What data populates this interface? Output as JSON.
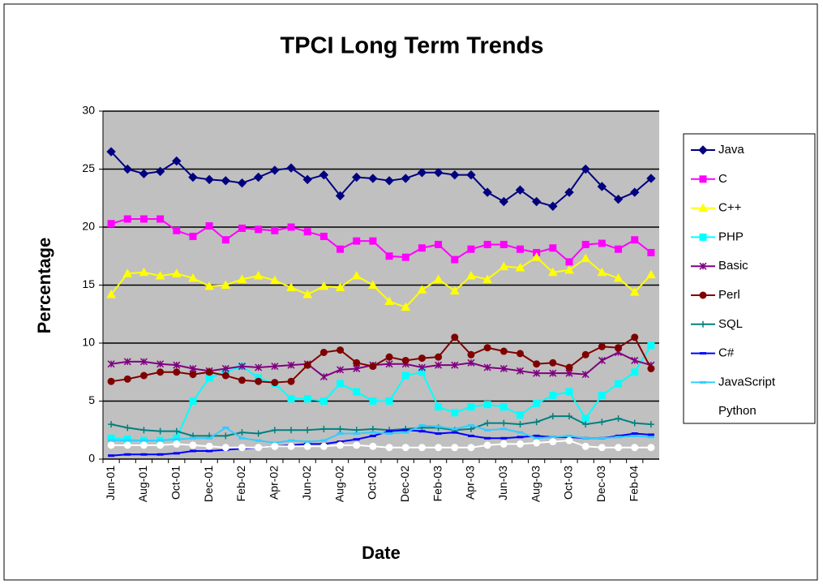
{
  "chart_data": {
    "type": "line",
    "title": "TPCI Long Term Trends",
    "x_label": "Date",
    "y_label": "Percentage",
    "categories": [
      "Jun-01",
      null,
      "Aug-01",
      null,
      "Oct-01",
      null,
      "Dec-01",
      null,
      "Feb-02",
      null,
      "Apr-02",
      null,
      "Jun-02",
      null,
      "Aug-02",
      null,
      "Oct-02",
      null,
      "Dec-02",
      null,
      "Feb-03",
      null,
      "Apr-03",
      null,
      "Jun-03",
      null,
      "Aug-03",
      null,
      "Oct-03",
      null,
      "Dec-03",
      null,
      "Feb-04",
      null
    ],
    "ylim": [
      0,
      30
    ],
    "yticks": [
      0,
      5,
      10,
      15,
      20,
      25,
      30
    ],
    "grid": true,
    "legend": "right",
    "series": [
      {
        "name": "Java",
        "color": "#000080",
        "marker": "diamond",
        "values": [
          26.5,
          25,
          24.6,
          24.8,
          25.7,
          24.3,
          24.1,
          24,
          23.8,
          24.3,
          24.9,
          25.1,
          24.1,
          24.5,
          22.7,
          24.3,
          24.2,
          24,
          24.2,
          24.7,
          24.7,
          24.5,
          24.5,
          23,
          22.2,
          23.2,
          22.2,
          21.8,
          23,
          25,
          23.5,
          22.4,
          23,
          24.2
        ]
      },
      {
        "name": "C",
        "color": "#ff00ff",
        "marker": "square",
        "values": [
          20.3,
          20.7,
          20.7,
          20.7,
          19.7,
          19.2,
          20.1,
          18.9,
          19.9,
          19.8,
          19.7,
          20,
          19.6,
          19.2,
          18.1,
          18.8,
          18.8,
          17.5,
          17.4,
          18.2,
          18.5,
          17.2,
          18.1,
          18.5,
          18.5,
          18.1,
          17.8,
          18.2,
          17,
          18.5,
          18.6,
          18.1,
          18.9,
          17.8
        ]
      },
      {
        "name": "C++",
        "color": "#ffff00",
        "marker": "triangle",
        "values": [
          14.2,
          16,
          16.1,
          15.8,
          16,
          15.6,
          14.9,
          15,
          15.5,
          15.8,
          15.4,
          14.8,
          14.2,
          14.9,
          14.8,
          15.8,
          15,
          13.6,
          13.1,
          14.6,
          15.5,
          14.5,
          15.8,
          15.5,
          16.6,
          16.5,
          17.4,
          16.1,
          16.3,
          17.3,
          16.1,
          15.6,
          14.4,
          15.9
        ]
      },
      {
        "name": "PHP",
        "color": "#00ffff",
        "marker": "square",
        "values": [
          1.8,
          1.7,
          1.6,
          1.6,
          1.8,
          5,
          7,
          7.5,
          8,
          7,
          6.5,
          5.2,
          5.2,
          5,
          6.5,
          5.8,
          5,
          5,
          7.2,
          7.5,
          4.5,
          4,
          4.5,
          4.7,
          4.5,
          3.8,
          4.8,
          5.5,
          5.8,
          3.5,
          5.5,
          6.5,
          7.5,
          9.8
        ]
      },
      {
        "name": "Basic",
        "color": "#800080",
        "marker": "star",
        "values": [
          8.2,
          8.4,
          8.4,
          8.2,
          8.1,
          7.8,
          7.6,
          7.8,
          8,
          7.9,
          8,
          8.1,
          8.2,
          7.1,
          7.7,
          7.8,
          8.1,
          8.2,
          8.2,
          7.9,
          8.1,
          8.1,
          8.3,
          7.9,
          7.8,
          7.6,
          7.4,
          7.4,
          7.4,
          7.3,
          8.5,
          9.2,
          8.5,
          8.1
        ]
      },
      {
        "name": "Perl",
        "color": "#800000",
        "marker": "circle",
        "values": [
          6.7,
          6.9,
          7.2,
          7.5,
          7.5,
          7.3,
          7.5,
          7.2,
          6.8,
          6.7,
          6.6,
          6.7,
          8.1,
          9.2,
          9.4,
          8.3,
          8,
          8.8,
          8.5,
          8.7,
          8.8,
          10.5,
          9,
          9.6,
          9.3,
          9.1,
          8.2,
          8.3,
          7.9,
          9,
          9.7,
          9.6,
          10.5,
          7.8
        ]
      },
      {
        "name": "SQL",
        "color": "#008080",
        "marker": "plus",
        "values": [
          3,
          2.7,
          2.5,
          2.4,
          2.4,
          2,
          2,
          2,
          2.3,
          2.2,
          2.5,
          2.5,
          2.5,
          2.6,
          2.6,
          2.5,
          2.6,
          2.5,
          2.6,
          2.7,
          2.7,
          2.5,
          2.6,
          3.1,
          3.1,
          3,
          3.2,
          3.7,
          3.7,
          3,
          3.2,
          3.5,
          3.1,
          3
        ]
      },
      {
        "name": "C#",
        "color": "#0000ff",
        "marker": "dash",
        "values": [
          0.3,
          0.4,
          0.4,
          0.4,
          0.5,
          0.7,
          0.7,
          0.8,
          0.9,
          1,
          1.1,
          1.2,
          1.3,
          1.3,
          1.5,
          1.7,
          2,
          2.4,
          2.5,
          2.4,
          2.2,
          2.3,
          2,
          1.8,
          1.8,
          1.9,
          2,
          1.9,
          1.9,
          1.8,
          1.8,
          2,
          2.2,
          2.1
        ]
      },
      {
        "name": "JavaScript",
        "color": "#33ccff",
        "marker": "dash",
        "values": [
          1.6,
          1.6,
          1.6,
          1.6,
          1.7,
          1.8,
          1.8,
          2.7,
          1.8,
          1.6,
          1.4,
          1.6,
          1.5,
          1.6,
          2.2,
          2.2,
          2.3,
          2.2,
          2.3,
          2.9,
          2.8,
          2.6,
          2.9,
          2.5,
          2.6,
          2.3,
          1.8,
          1.9,
          2,
          1.8,
          1.8,
          1.9,
          2,
          1.9
        ]
      },
      {
        "name": "Python",
        "color": "#ffffff",
        "marker": "circle",
        "values": [
          1.2,
          1.2,
          1.2,
          1.2,
          1.3,
          1.2,
          1.1,
          1,
          1,
          1,
          1.1,
          1.1,
          1.1,
          1.1,
          1.2,
          1.2,
          1.1,
          1,
          1,
          1,
          1,
          1,
          1,
          1.2,
          1.3,
          1.3,
          1.4,
          1.5,
          1.6,
          1.1,
          1,
          1,
          1,
          1
        ]
      }
    ]
  }
}
